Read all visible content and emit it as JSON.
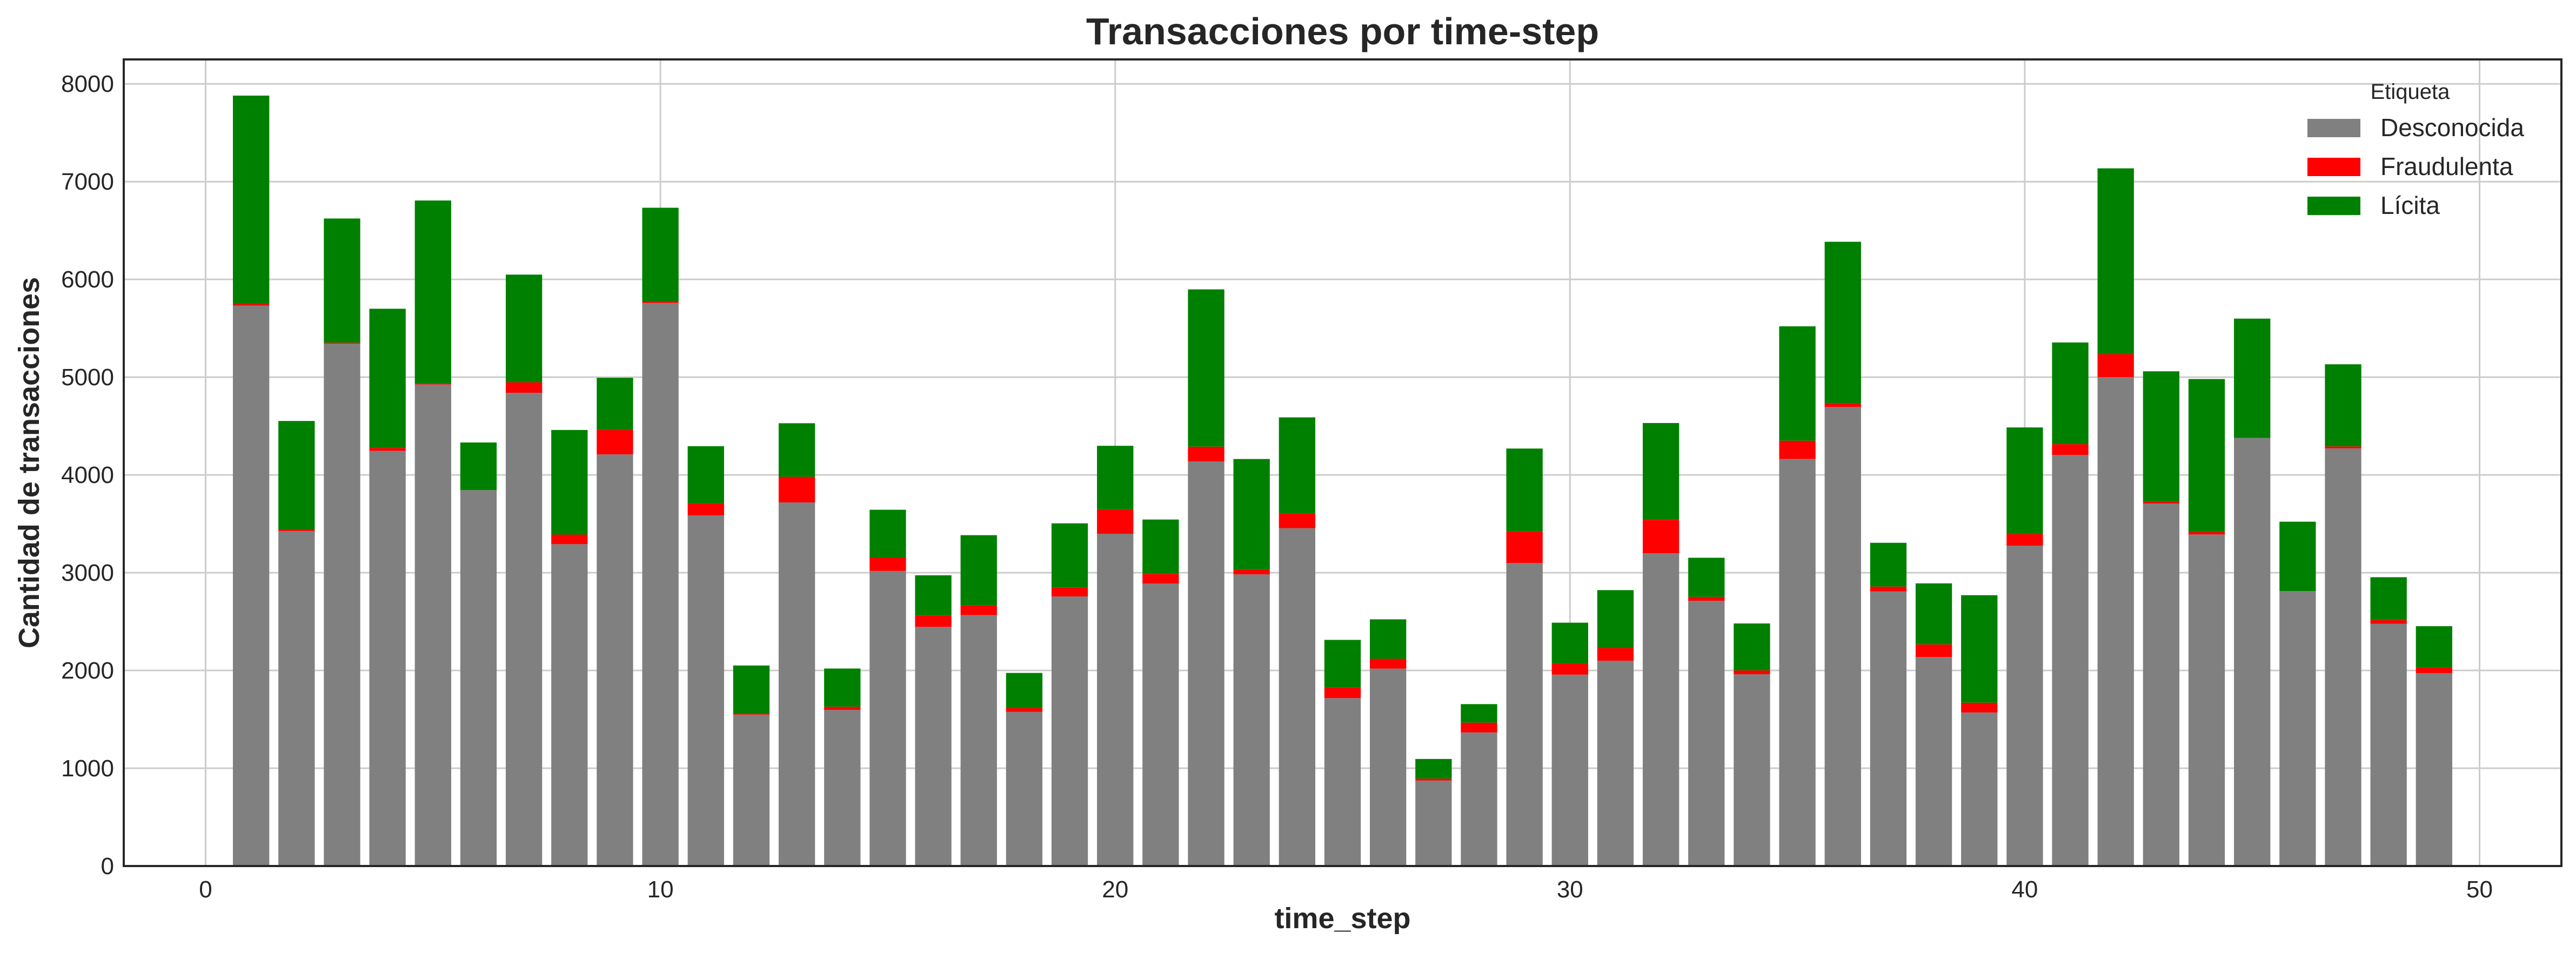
{
  "chart_data": {
    "type": "bar",
    "stacked": true,
    "title": "Transacciones por time-step",
    "xlabel": "time_step",
    "ylabel": "Cantidad de transacciones",
    "xlim": [
      -1.8,
      51.8
    ],
    "ylim": [
      0,
      8250
    ],
    "xticks": [
      0,
      10,
      20,
      30,
      40,
      50
    ],
    "yticks": [
      0,
      1000,
      2000,
      3000,
      4000,
      5000,
      6000,
      7000,
      8000
    ],
    "grid": true,
    "legend": {
      "title": "Etiqueta",
      "position": "top-right"
    },
    "x": [
      1,
      2,
      3,
      4,
      5,
      6,
      7,
      8,
      9,
      10,
      11,
      12,
      13,
      14,
      15,
      16,
      17,
      18,
      19,
      20,
      21,
      22,
      23,
      24,
      25,
      26,
      27,
      28,
      29,
      30,
      31,
      32,
      33,
      34,
      35,
      36,
      37,
      38,
      39,
      40,
      41,
      42,
      43,
      44,
      45,
      46,
      47,
      48,
      49
    ],
    "series": [
      {
        "name": "Desconocida",
        "color": "#808080",
        "values": [
          5733,
          3427,
          5342,
          4246,
          4925,
          3845,
          4840,
          3292,
          4210,
          5760,
          3585,
          1548,
          3719,
          1596,
          3018,
          2446,
          2567,
          1576,
          2757,
          3398,
          2888,
          4139,
          2983,
          3455,
          1717,
          2019,
          874,
          1366,
          3100,
          1957,
          2100,
          3199,
          2713,
          1961,
          4164,
          4695,
          2808,
          2137,
          1570,
          3276,
          4205,
          5000,
          3708,
          3391,
          4379,
          2812,
          4272,
          2478,
          1973
        ]
      },
      {
        "name": "Fraudulenta",
        "color": "#ff0000",
        "values": [
          17,
          18,
          11,
          30,
          8,
          0,
          108,
          98,
          250,
          17,
          125,
          8,
          262,
          33,
          140,
          117,
          100,
          40,
          90,
          250,
          100,
          150,
          50,
          150,
          110,
          100,
          20,
          100,
          324,
          110,
          130,
          342,
          40,
          40,
          186,
          40,
          50,
          130,
          100,
          120,
          110,
          236,
          20,
          26,
          0,
          0,
          20,
          38,
          60
        ]
      },
      {
        "name": "Lícita",
        "color": "#008000",
        "values": [
          2130,
          1107,
          1270,
          1424,
          1874,
          487,
          1101,
          1070,
          534,
          956,
          584,
          495,
          548,
          391,
          486,
          411,
          717,
          359,
          658,
          650,
          556,
          1609,
          1130,
          984,
          486,
          404,
          201,
          190,
          846,
          422,
          592,
          990,
          400,
          480,
          1170,
          1650,
          448,
          624,
          1100,
          1090,
          1040,
          1900,
          1332,
          1564,
          1220,
          710,
          840,
          438,
          420
        ]
      }
    ]
  }
}
